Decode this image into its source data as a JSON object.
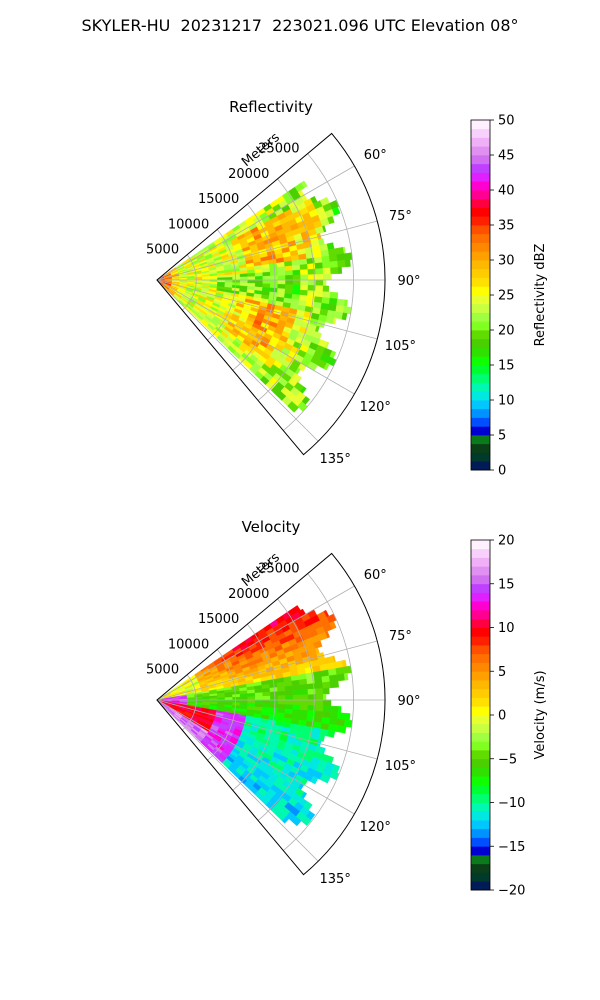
{
  "title": "SKYLER-HU  20231217  223021.096 UTC Elevation 08°",
  "chart_data": [
    {
      "type": "heatmap",
      "projection": "polar-sector",
      "title": "Reflectivity",
      "radial_label": "Meters",
      "radial_ticks": [
        5000,
        10000,
        15000,
        20000,
        25000
      ],
      "radial_tick_labels": [
        "5000",
        "10000",
        "15000",
        "20000",
        "25000"
      ],
      "radial_lim": [
        0,
        29000
      ],
      "azimuth_lim": [
        50,
        140
      ],
      "azimuth_ticks": [
        60,
        75,
        90,
        105,
        120,
        135
      ],
      "azimuth_tick_labels": [
        "60°",
        "75°",
        "90°",
        "105°",
        "120°",
        "135°"
      ],
      "data_extent": {
        "azimuth": [
          56,
          134
        ],
        "range_max": 25000
      },
      "grid": true,
      "colorbar": {
        "label": "Reflectivity dBZ",
        "min": 0,
        "max": 50,
        "ticks": [
          0,
          5,
          10,
          15,
          20,
          25,
          30,
          35,
          40,
          45,
          50
        ],
        "tick_labels": [
          "0",
          "5",
          "10",
          "15",
          "20",
          "25",
          "30",
          "35",
          "40",
          "45",
          "50"
        ],
        "levels": 40,
        "colors": [
          "#001b55",
          "#003a2a",
          "#0b3f18",
          "#0a7a1a",
          "#0000d0",
          "#0050ff",
          "#0092ff",
          "#00c8ff",
          "#00e8e0",
          "#00f8b0",
          "#00ff70",
          "#00ff30",
          "#10ff00",
          "#30e000",
          "#4ad000",
          "#60dc00",
          "#80ff20",
          "#a0ff40",
          "#c8ff40",
          "#e8ff30",
          "#ffff00",
          "#ffe000",
          "#ffcc00",
          "#ffb800",
          "#ffa000",
          "#ff8800",
          "#ff7000",
          "#ff5000",
          "#ff2000",
          "#ff0000",
          "#ff0040",
          "#ff0090",
          "#ff00d0",
          "#e020ff",
          "#c040ff",
          "#d070f0",
          "#e090f0",
          "#f0b0f8",
          "#f8d0fc",
          "#fff0ff"
        ]
      }
    },
    {
      "type": "heatmap",
      "projection": "polar-sector",
      "title": "Velocity",
      "radial_label": "Meters",
      "radial_ticks": [
        5000,
        10000,
        15000,
        20000,
        25000
      ],
      "radial_tick_labels": [
        "5000",
        "10000",
        "15000",
        "20000",
        "25000"
      ],
      "radial_lim": [
        0,
        29000
      ],
      "azimuth_lim": [
        50,
        140
      ],
      "azimuth_ticks": [
        60,
        75,
        90,
        105,
        120,
        135
      ],
      "azimuth_tick_labels": [
        "60°",
        "75°",
        "90°",
        "105°",
        "120°",
        "135°"
      ],
      "data_extent": {
        "azimuth": [
          56,
          134
        ],
        "range_max": 25000
      },
      "grid": true,
      "colorbar": {
        "label": "Velocity (m/s)",
        "min": -20,
        "max": 20,
        "ticks": [
          -20,
          -15,
          -10,
          -5,
          0,
          5,
          10,
          15,
          20
        ],
        "tick_labels": [
          "−20",
          "−15",
          "−10",
          "−5",
          "0",
          "5",
          "10",
          "15",
          "20"
        ],
        "levels": 40,
        "colors": [
          "#001b55",
          "#003a2a",
          "#0b3f18",
          "#0a7a1a",
          "#0000d0",
          "#0050ff",
          "#0092ff",
          "#00c8ff",
          "#00e8e0",
          "#00f8b0",
          "#00ff70",
          "#00ff30",
          "#10ff00",
          "#30e000",
          "#4ad000",
          "#60dc00",
          "#80ff20",
          "#a0ff40",
          "#c8ff40",
          "#e8ff30",
          "#ffff00",
          "#ffe000",
          "#ffcc00",
          "#ffb800",
          "#ffa000",
          "#ff8800",
          "#ff7000",
          "#ff5000",
          "#ff2000",
          "#ff0000",
          "#ff0040",
          "#ff0090",
          "#ff00d0",
          "#e020ff",
          "#c040ff",
          "#d070f0",
          "#e090f0",
          "#f0b0f8",
          "#f8d0fc",
          "#fff0ff"
        ]
      }
    }
  ]
}
